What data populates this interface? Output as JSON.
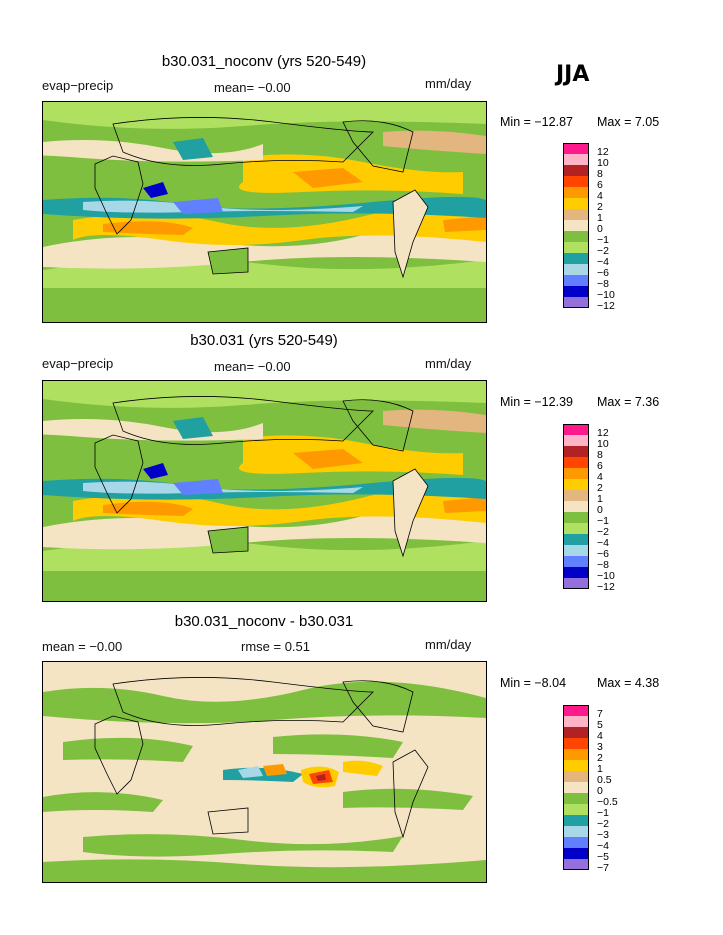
{
  "season": "JJA",
  "panels": [
    {
      "title": "b30.031_noconv (yrs 520-549)",
      "left_label": "evap−precip",
      "mean_text": "mean=   −0.00",
      "units": "mm/day",
      "min_label": "Min = −12.87",
      "max_label": "Max =     7.05",
      "scale": {
        "colors": [
          "#ff1a8c",
          "#ffb3c6",
          "#b22222",
          "#ff4500",
          "#ff9900",
          "#ffcc00",
          "#e3b67f",
          "#f4e4c4",
          "#7fbf3f",
          "#b0e060",
          "#20a0a0",
          "#a8d8e8",
          "#6080ff",
          "#0000c8",
          "#9370db"
        ],
        "labels": [
          "12",
          "10",
          "8",
          "6",
          "4",
          "2",
          "1",
          "0",
          "−1",
          "−2",
          "−4",
          "−6",
          "−8",
          "−10",
          "−12"
        ]
      }
    },
    {
      "title": "b30.031 (yrs 520-549)",
      "left_label": "evap−precip",
      "mean_text": "mean=   −0.00",
      "units": "mm/day",
      "min_label": "Min = −12.39",
      "max_label": "Max =     7.36",
      "scale": {
        "colors": [
          "#ff1a8c",
          "#ffb3c6",
          "#b22222",
          "#ff4500",
          "#ff9900",
          "#ffcc00",
          "#e3b67f",
          "#f4e4c4",
          "#7fbf3f",
          "#b0e060",
          "#20a0a0",
          "#a8d8e8",
          "#6080ff",
          "#0000c8",
          "#9370db"
        ],
        "labels": [
          "12",
          "10",
          "8",
          "6",
          "4",
          "2",
          "1",
          "0",
          "−1",
          "−2",
          "−4",
          "−6",
          "−8",
          "−10",
          "−12"
        ]
      }
    },
    {
      "title": "b30.031_noconv - b30.031",
      "left_label": "mean =    −0.00",
      "mean_text": "rmse =     0.51",
      "units": "mm/day",
      "min_label": "Min =   −8.04",
      "max_label": "Max =     4.38",
      "scale": {
        "colors": [
          "#ff1a8c",
          "#ffb3c6",
          "#b22222",
          "#ff4500",
          "#ff9900",
          "#ffcc00",
          "#e3b67f",
          "#f4e4c4",
          "#7fbf3f",
          "#b0e060",
          "#20a0a0",
          "#a8d8e8",
          "#6080ff",
          "#0000c8",
          "#9370db"
        ],
        "labels": [
          "7",
          "5",
          "4",
          "3",
          "2",
          "1",
          "0.5",
          "0",
          "−0.5",
          "−1",
          "−2",
          "−3",
          "−4",
          "−5",
          "−7"
        ]
      }
    }
  ]
}
